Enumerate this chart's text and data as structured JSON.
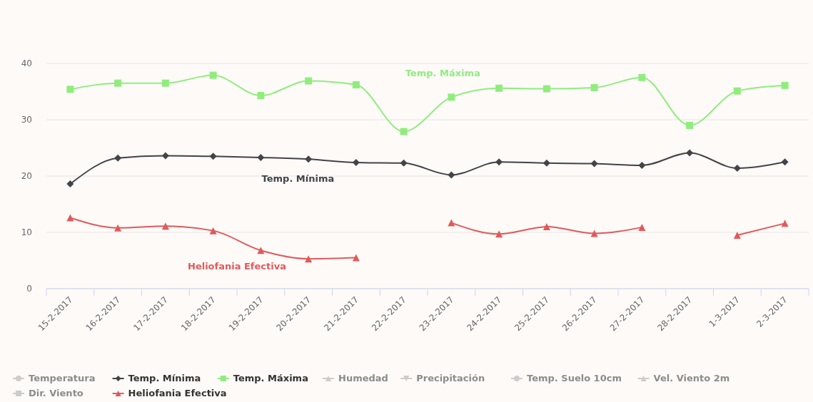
{
  "chart_data": {
    "type": "line",
    "categories": [
      "15-2-2017",
      "16-2-2017",
      "17-2-2017",
      "18-2-2017",
      "19-2-2017",
      "20-2-2017",
      "21-2-2017",
      "22-2-2017",
      "23-2-2017",
      "24-2-2017",
      "25-2-2017",
      "26-2-2017",
      "27-2-2017",
      "28-2-2017",
      "1-3-2017",
      "2-3-2017"
    ],
    "series": [
      {
        "name": "Temperatura",
        "color": "#cccccc",
        "marker": "circle",
        "values": [
          null,
          null,
          null,
          null,
          null,
          null,
          null,
          null,
          null,
          null,
          null,
          null,
          null,
          null,
          null,
          null
        ]
      },
      {
        "name": "Temp. Mínima",
        "color": "#434348",
        "marker": "diamond",
        "values": [
          18.6,
          23.2,
          23.6,
          23.5,
          23.3,
          23.0,
          22.4,
          22.3,
          20.2,
          22.5,
          22.3,
          22.2,
          21.9,
          24.1,
          21.4,
          22.5
        ]
      },
      {
        "name": "Temp. Máxima",
        "color": "#90ed7d",
        "marker": "square",
        "values": [
          35.4,
          36.5,
          36.5,
          37.9,
          34.3,
          36.9,
          36.2,
          27.9,
          34.0,
          35.6,
          35.5,
          35.7,
          37.5,
          29.0,
          35.1,
          36.1
        ]
      },
      {
        "name": "Humedad",
        "color": "#cccccc",
        "marker": "triangle",
        "values": [
          null,
          null,
          null,
          null,
          null,
          null,
          null,
          null,
          null,
          null,
          null,
          null,
          null,
          null,
          null,
          null
        ]
      },
      {
        "name": "Precipitación",
        "color": "#cccccc",
        "marker": "triangle-down",
        "values": [
          null,
          null,
          null,
          null,
          null,
          null,
          null,
          null,
          null,
          null,
          null,
          null,
          null,
          null,
          null,
          null
        ]
      },
      {
        "name": "Temp. Suelo 10cm",
        "color": "#cccccc",
        "marker": "circle",
        "values": [
          null,
          null,
          null,
          null,
          null,
          null,
          null,
          null,
          null,
          null,
          null,
          null,
          null,
          null,
          null,
          null
        ]
      },
      {
        "name": "Vel. Viento 2m",
        "color": "#cccccc",
        "marker": "triangle",
        "values": [
          null,
          null,
          null,
          null,
          null,
          null,
          null,
          null,
          null,
          null,
          null,
          null,
          null,
          null,
          null,
          null
        ]
      },
      {
        "name": "Dir. Viento",
        "color": "#cccccc",
        "marker": "square",
        "values": [
          null,
          null,
          null,
          null,
          null,
          null,
          null,
          null,
          null,
          null,
          null,
          null,
          null,
          null,
          null,
          null
        ]
      },
      {
        "name": "Heliofania Efectiva",
        "color": "#e05a5a",
        "marker": "triangle",
        "values": [
          12.6,
          10.8,
          11.1,
          10.3,
          6.8,
          5.3,
          5.5,
          null,
          11.7,
          9.7,
          11.0,
          9.8,
          10.9,
          null,
          9.5,
          11.6
        ]
      }
    ],
    "ylim": [
      0,
      40
    ],
    "yticks": [
      0,
      10,
      20,
      30,
      40
    ],
    "grid": "y",
    "legend": "bottom"
  }
}
